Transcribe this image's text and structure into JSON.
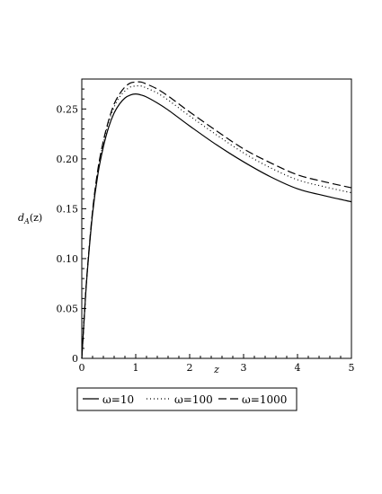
{
  "chart_data": {
    "type": "line",
    "xlabel": "z",
    "ylabel_main": "d",
    "ylabel_sub": "A",
    "ylabel_arg": "(z)",
    "xlim": [
      0,
      5
    ],
    "ylim": [
      0,
      0.28
    ],
    "xticks": [
      0,
      1,
      2,
      3,
      4,
      5
    ],
    "xtick_labels": [
      "0",
      "1",
      "2",
      "3",
      "4",
      "5"
    ],
    "yticks": [
      0,
      0.05,
      0.1,
      0.15,
      0.2,
      0.25
    ],
    "ytick_labels": [
      "0",
      "0.05",
      "0.10",
      "0.15",
      "0.20",
      "0.25"
    ],
    "grid": false,
    "legend_position": "bottom",
    "x": [
      0,
      0.05,
      0.1,
      0.2,
      0.3,
      0.4,
      0.5,
      0.6,
      0.7,
      0.8,
      0.9,
      1.0,
      1.1,
      1.2,
      1.4,
      1.6,
      1.8,
      2.0,
      2.5,
      3.0,
      3.5,
      4.0,
      4.5,
      5.0
    ],
    "series": [
      {
        "name": "ω=10",
        "style": "solid",
        "values": [
          0,
          0.045,
          0.085,
          0.145,
          0.185,
          0.212,
          0.232,
          0.246,
          0.255,
          0.261,
          0.264,
          0.265,
          0.264,
          0.262,
          0.256,
          0.249,
          0.241,
          0.233,
          0.214,
          0.197,
          0.182,
          0.17,
          0.163,
          0.157
        ]
      },
      {
        "name": "ω=100",
        "style": "dotted",
        "values": [
          0,
          0.045,
          0.086,
          0.147,
          0.188,
          0.216,
          0.237,
          0.252,
          0.262,
          0.268,
          0.272,
          0.273,
          0.273,
          0.271,
          0.266,
          0.259,
          0.251,
          0.243,
          0.224,
          0.206,
          0.191,
          0.179,
          0.172,
          0.166
        ]
      },
      {
        "name": "ω=1000",
        "style": "dashed",
        "values": [
          0,
          0.046,
          0.087,
          0.148,
          0.19,
          0.218,
          0.239,
          0.255,
          0.265,
          0.272,
          0.276,
          0.277,
          0.277,
          0.275,
          0.27,
          0.263,
          0.255,
          0.247,
          0.228,
          0.21,
          0.196,
          0.184,
          0.177,
          0.171
        ]
      }
    ]
  },
  "colors": {
    "line": "#000000",
    "axis": "#000000",
    "background": "#ffffff"
  }
}
